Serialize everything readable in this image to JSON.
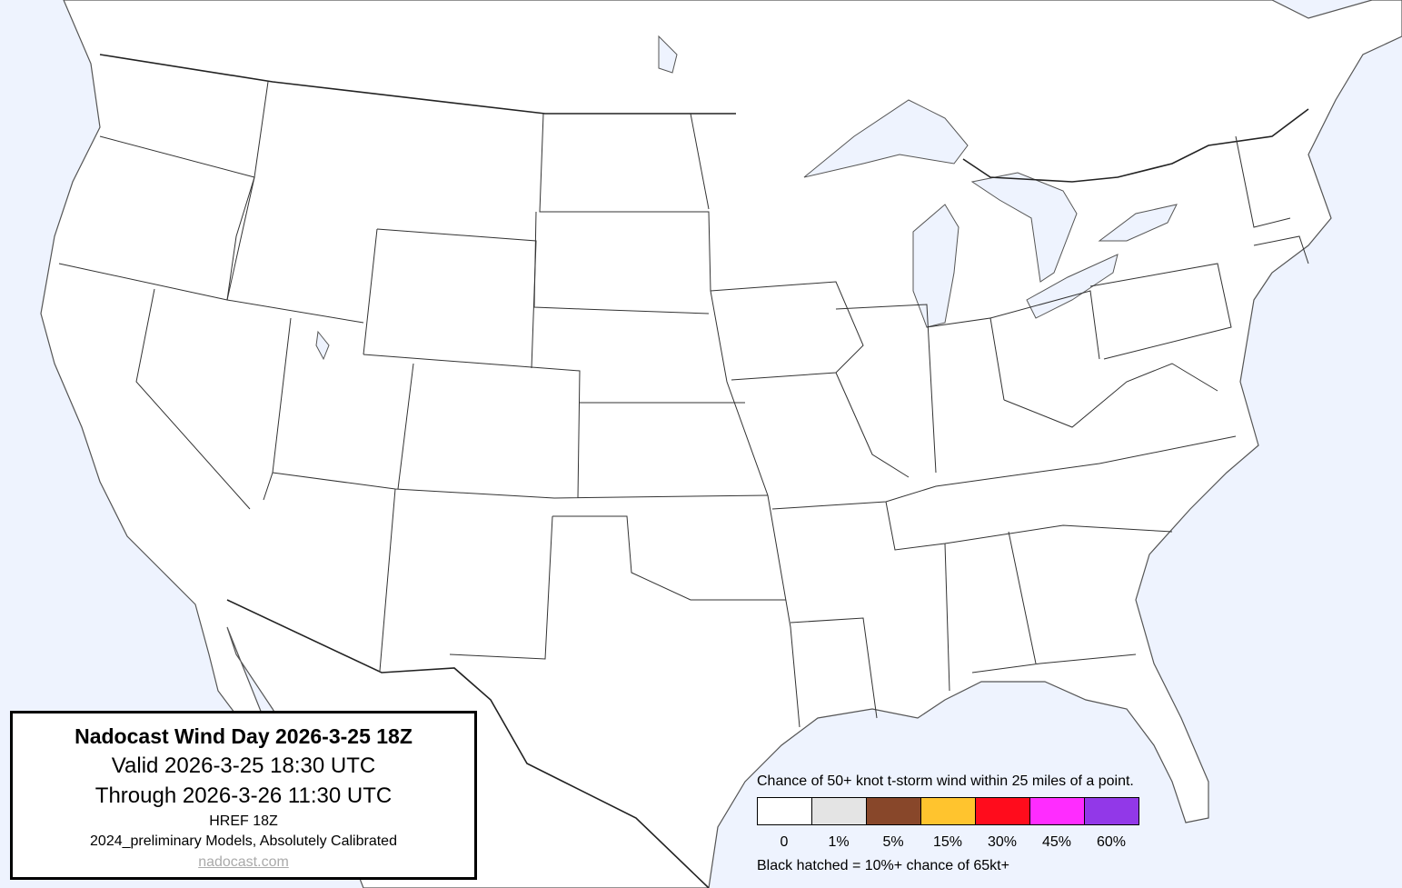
{
  "title_box": {
    "title": "Nadocast Wind Day 2026-3-25 18Z",
    "valid": "Valid 2026-3-25 18:30 UTC",
    "through": "Through 2026-3-26 11:30 UTC",
    "model": "HREF 18Z",
    "calibration": "2024_preliminary Models, Absolutely Calibrated",
    "website": "nadocast.com"
  },
  "legend": {
    "title": "Chance of 50+ knot t-storm wind within 25 miles of a point.",
    "bins": [
      {
        "label": "0",
        "color": "#ffffff"
      },
      {
        "label": "1%",
        "color": "#e4e4e4"
      },
      {
        "label": "5%",
        "color": "#88472a"
      },
      {
        "label": "15%",
        "color": "#ffc42e"
      },
      {
        "label": "30%",
        "color": "#ff0c1c"
      },
      {
        "label": "45%",
        "color": "#ff2cff"
      },
      {
        "label": "60%",
        "color": "#9238e8"
      }
    ],
    "note": "Black hatched = 10%+ chance of 65kt+"
  },
  "colors": {
    "ocean": "#eef3fe",
    "land": "#ffffff"
  }
}
